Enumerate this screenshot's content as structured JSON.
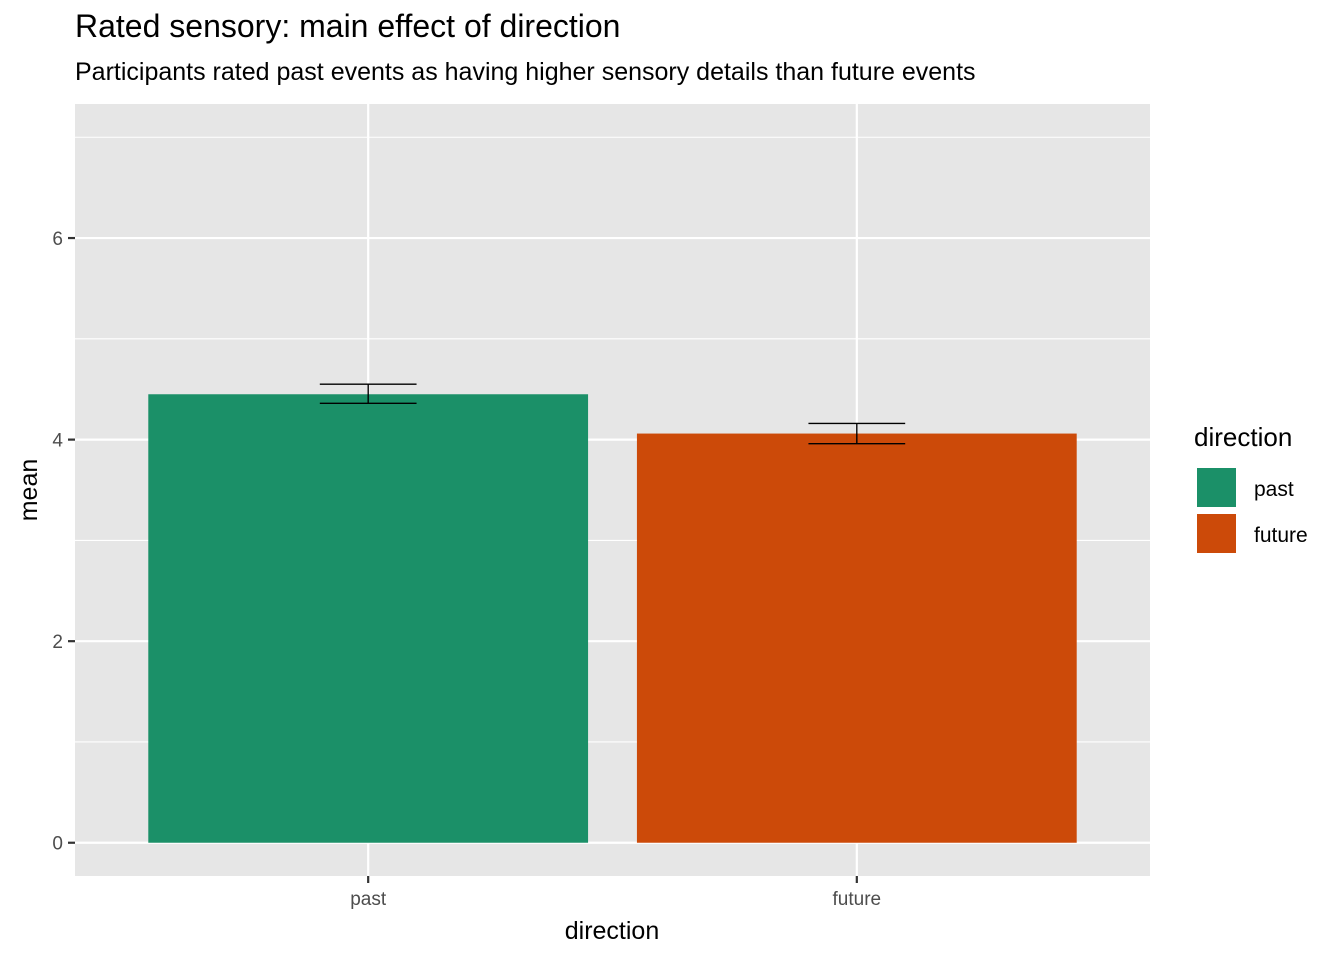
{
  "chart_data": {
    "type": "bar",
    "title": "Rated sensory: main effect of direction",
    "subtitle": "Participants rated past events as having higher sensory details than future events",
    "xlabel": "direction",
    "ylabel": "mean",
    "categories": [
      "past",
      "future"
    ],
    "values": [
      4.45,
      4.06
    ],
    "error_low": [
      4.36,
      3.96
    ],
    "error_high": [
      4.55,
      4.16
    ],
    "colors": [
      "#1B9068",
      "#CC4A09"
    ],
    "ylim": [
      -0.33,
      7.33
    ],
    "yticks": [
      0,
      2,
      4,
      6
    ],
    "grid": true,
    "legend": {
      "title": "direction",
      "position": "right",
      "items": [
        "past",
        "future"
      ]
    }
  }
}
